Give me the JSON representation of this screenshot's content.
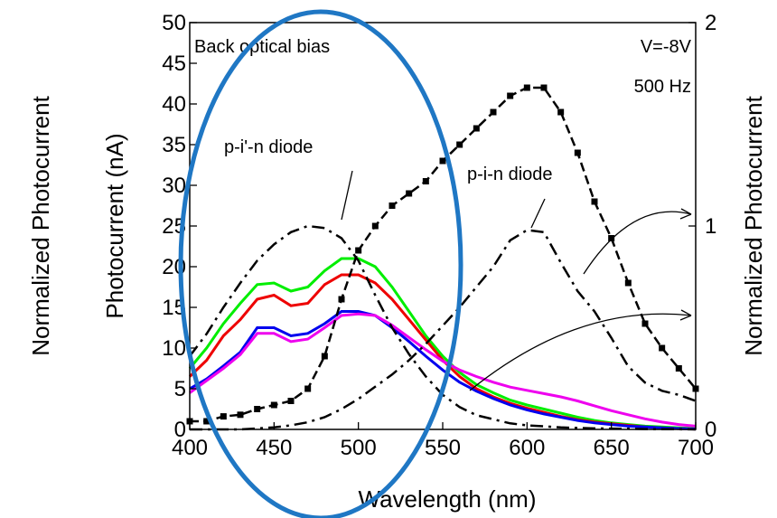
{
  "chart_data": {
    "type": "line",
    "xlabel": "Wavelength (nm)",
    "ylabel": "Photocurrent (nA)",
    "y2label": "Normalized Photocurrent",
    "outer_label": "Normalized Photocurrent",
    "xlim": [
      400,
      700
    ],
    "ylim": [
      0,
      50
    ],
    "y2lim": [
      0,
      2
    ],
    "xticks": [
      "400",
      "450",
      "500",
      "550",
      "600",
      "650",
      "700"
    ],
    "yticks": [
      "0",
      "5",
      "10",
      "15",
      "20",
      "25",
      "30",
      "35",
      "40",
      "45",
      "50"
    ],
    "y2ticks": [
      "0",
      "1",
      "2"
    ],
    "annotations": {
      "back_bias": "Back optical bias",
      "voltage": "V=-8V",
      "frequency": "500 Hz",
      "pin_prime": "p-i'-n diode",
      "pin": "p-i-n diode"
    },
    "colors": {
      "highlight_ellipse": "#1f77c4",
      "green": "#00ee00",
      "red": "#ee0000",
      "blue": "#0000ee",
      "magenta": "#ee00ee",
      "black": "#000000"
    },
    "series": [
      {
        "color": "green",
        "axis": "left",
        "style": "solid",
        "x": [
          400,
          410,
          420,
          430,
          440,
          450,
          460,
          470,
          480,
          490,
          500,
          510,
          520,
          530,
          540,
          550,
          560,
          570,
          580,
          590,
          600,
          610,
          620,
          630,
          640,
          650,
          660,
          670,
          680,
          690,
          700
        ],
        "y": [
          7.5,
          10,
          13,
          15.5,
          17.8,
          18,
          17,
          17.5,
          19.5,
          21,
          21,
          20,
          17.5,
          14.5,
          11.5,
          9,
          7,
          5.5,
          4.5,
          3.6,
          3,
          2.5,
          2,
          1.5,
          1.1,
          0.8,
          0.6,
          0.4,
          0.3,
          0.2,
          0.1
        ]
      },
      {
        "color": "red",
        "axis": "left",
        "style": "solid",
        "x": [
          400,
          410,
          420,
          430,
          440,
          450,
          460,
          470,
          480,
          490,
          500,
          510,
          520,
          530,
          540,
          550,
          560,
          570,
          580,
          590,
          600,
          610,
          620,
          630,
          640,
          650,
          660,
          670,
          680,
          690,
          700
        ],
        "y": [
          6.5,
          8.5,
          11.5,
          13.5,
          16,
          16.5,
          15.2,
          15.5,
          17.8,
          19,
          19,
          18,
          16,
          13.5,
          11,
          8.5,
          6.5,
          5,
          4,
          3.2,
          2.6,
          2.1,
          1.6,
          1.2,
          0.9,
          0.7,
          0.5,
          0.3,
          0.2,
          0.1,
          0.05
        ]
      },
      {
        "color": "blue",
        "axis": "left",
        "style": "solid",
        "x": [
          400,
          410,
          420,
          430,
          440,
          450,
          460,
          470,
          480,
          490,
          500,
          510,
          520,
          530,
          540,
          550,
          560,
          570,
          580,
          590,
          600,
          610,
          620,
          630,
          640,
          650,
          660,
          670,
          680,
          690,
          700
        ],
        "y": [
          5,
          6.2,
          7.8,
          9.5,
          12.5,
          12.5,
          11.5,
          11.8,
          13,
          14.5,
          14.5,
          14,
          12.5,
          10.8,
          9,
          7.3,
          5.8,
          4.7,
          3.8,
          3,
          2.4,
          1.9,
          1.5,
          1.1,
          0.8,
          0.6,
          0.4,
          0.3,
          0.2,
          0.1,
          0.05
        ]
      },
      {
        "color": "magenta",
        "axis": "left",
        "style": "solid",
        "x": [
          400,
          410,
          420,
          430,
          440,
          450,
          460,
          470,
          480,
          490,
          500,
          510,
          520,
          530,
          540,
          550,
          560,
          570,
          580,
          590,
          600,
          610,
          620,
          630,
          640,
          650,
          660,
          670,
          680,
          690,
          700
        ],
        "y": [
          4.5,
          6,
          7.5,
          9.2,
          11.8,
          11.8,
          10.8,
          11.1,
          12.5,
          14,
          14.2,
          14,
          12.8,
          11.3,
          9.8,
          8.4,
          7.3,
          6.5,
          5.8,
          5.2,
          4.8,
          4.4,
          4,
          3.5,
          2.9,
          2.3,
          1.8,
          1.3,
          0.9,
          0.6,
          0.4
        ]
      },
      {
        "color": "black",
        "axis": "left",
        "style": "dash-square",
        "name": "",
        "x": [
          400,
          410,
          420,
          430,
          440,
          450,
          460,
          470,
          480,
          490,
          500,
          510,
          520,
          530,
          540,
          550,
          560,
          570,
          580,
          590,
          600,
          610,
          620,
          630,
          640,
          650,
          660,
          670,
          680,
          690,
          700
        ],
        "y": [
          1,
          1,
          1.6,
          1.8,
          2.5,
          3,
          3.5,
          5,
          9,
          16,
          22,
          25,
          27.5,
          29,
          30.5,
          33,
          35,
          37,
          39,
          41,
          42,
          42,
          39,
          34,
          28,
          23.5,
          18,
          13,
          10,
          7.5,
          5
        ]
      },
      {
        "color": "black",
        "axis": "right",
        "style": "dashdot",
        "label": "p-i'-n diode",
        "x": [
          400,
          410,
          420,
          430,
          440,
          450,
          460,
          470,
          480,
          490,
          500,
          510,
          520,
          530,
          540,
          550,
          560,
          570,
          580,
          590,
          600,
          610,
          620,
          630,
          640,
          650,
          660,
          670,
          680,
          690,
          700
        ],
        "y": [
          0.36,
          0.47,
          0.6,
          0.72,
          0.83,
          0.91,
          0.97,
          1,
          0.99,
          0.94,
          0.83,
          0.66,
          0.5,
          0.37,
          0.26,
          0.17,
          0.11,
          0.07,
          0.05,
          0.03,
          0.02,
          0.015,
          0.01,
          0.007,
          0.005,
          0.004,
          0.003,
          0.002,
          0.001,
          0.001,
          0
        ]
      },
      {
        "color": "black",
        "axis": "right",
        "style": "dashdot",
        "label": "p-i-n diode",
        "x": [
          400,
          410,
          420,
          430,
          440,
          450,
          460,
          470,
          480,
          490,
          500,
          510,
          520,
          530,
          540,
          550,
          560,
          570,
          580,
          590,
          600,
          610,
          620,
          630,
          640,
          650,
          660,
          670,
          680,
          690,
          700
        ],
        "y": [
          0,
          0,
          0,
          0,
          0.005,
          0.01,
          0.02,
          0.035,
          0.06,
          0.1,
          0.15,
          0.21,
          0.27,
          0.34,
          0.42,
          0.51,
          0.6,
          0.7,
          0.8,
          0.93,
          0.98,
          0.97,
          0.82,
          0.68,
          0.58,
          0.45,
          0.31,
          0.23,
          0.19,
          0.17,
          0.14
        ]
      }
    ]
  }
}
